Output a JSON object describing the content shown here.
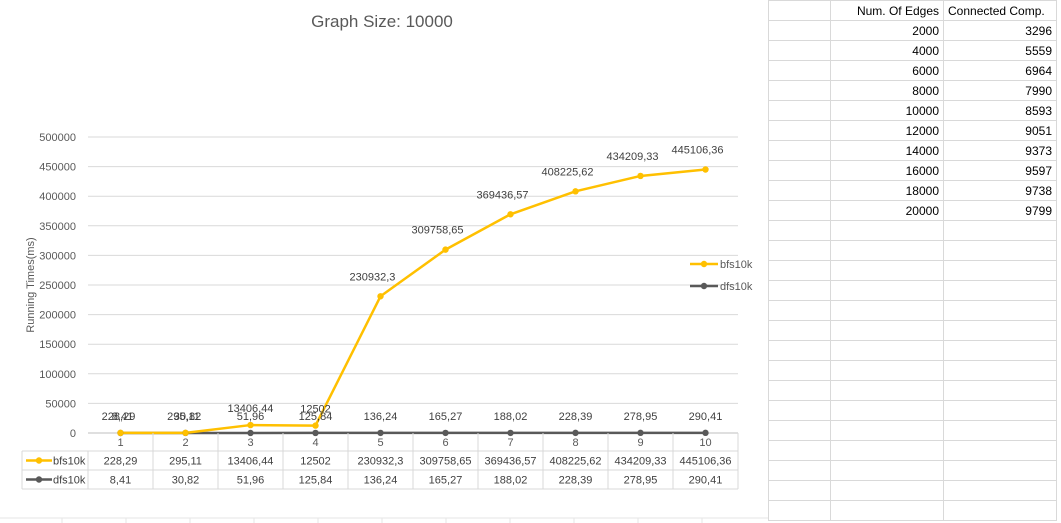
{
  "chart_data": {
    "type": "line",
    "title": "Graph Size: 10000",
    "ylabel": "Running Times(ms)",
    "xlabel": "",
    "categories": [
      "1",
      "2",
      "3",
      "4",
      "5",
      "6",
      "7",
      "8",
      "9",
      "10"
    ],
    "ylim": [
      0,
      500000
    ],
    "yticks": [
      0,
      50000,
      100000,
      150000,
      200000,
      250000,
      300000,
      350000,
      400000,
      450000,
      500000
    ],
    "ytick_labels": [
      "0",
      "50000",
      "100000",
      "150000",
      "200000",
      "250000",
      "300000",
      "350000",
      "400000",
      "450000",
      "500000"
    ],
    "grid": true,
    "legend_position": "right",
    "series": [
      {
        "name": "bfs10k",
        "color": "#ffc000",
        "values": [
          228.29,
          295.11,
          13406.44,
          12502,
          230932.3,
          309758.65,
          369436.57,
          408225.62,
          434209.33,
          445106.36
        ],
        "labels": [
          "228,29",
          "295,11",
          "13406,44",
          "12502",
          "230932,3",
          "309758,65",
          "369436,57",
          "408225,62",
          "434209,33",
          "445106,36"
        ]
      },
      {
        "name": "dfs10k",
        "color": "#595959",
        "values": [
          8.41,
          30.82,
          51.96,
          125.84,
          136.24,
          165.27,
          188.02,
          228.39,
          278.95,
          290.41
        ],
        "labels": [
          "8,41",
          "30,82",
          "51,96",
          "125,84",
          "136,24",
          "165,27",
          "188,02",
          "228,39",
          "278,95",
          "290,41"
        ]
      }
    ]
  },
  "spreadsheet": {
    "headers": [
      "Num. Of Edges",
      "Connected Comp."
    ],
    "rows": [
      [
        "2000",
        "3296"
      ],
      [
        "4000",
        "5559"
      ],
      [
        "6000",
        "6964"
      ],
      [
        "8000",
        "7990"
      ],
      [
        "10000",
        "8593"
      ],
      [
        "12000",
        "9051"
      ],
      [
        "14000",
        "9373"
      ],
      [
        "16000",
        "9597"
      ],
      [
        "18000",
        "9738"
      ],
      [
        "20000",
        "9799"
      ]
    ]
  }
}
